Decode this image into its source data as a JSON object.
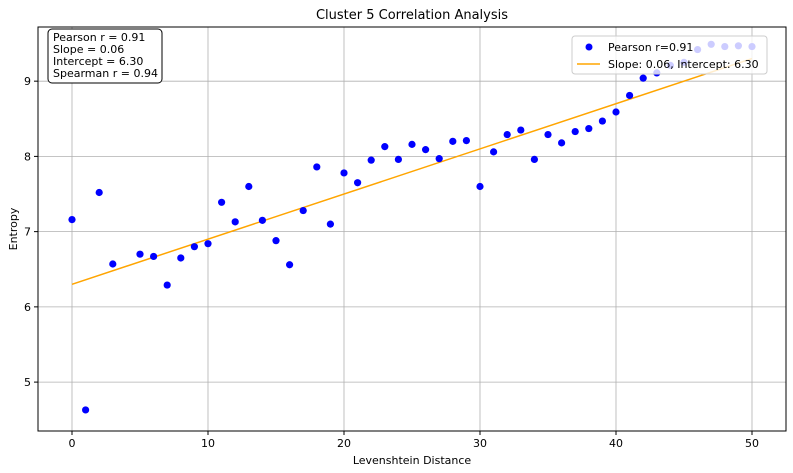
{
  "chart_data": {
    "type": "scatter",
    "title": "Cluster 5 Correlation Analysis",
    "xlabel": "Levenshtein Distance",
    "ylabel": "Entropy",
    "xlim": [
      -2.5,
      52.5
    ],
    "ylim": [
      4.35,
      9.72
    ],
    "xticks": [
      0,
      10,
      20,
      30,
      40,
      50
    ],
    "yticks": [
      5,
      6,
      7,
      8,
      9
    ],
    "grid": true,
    "legend_position": "top-right",
    "series": [
      {
        "name": "Pearson r=0.91",
        "kind": "scatter",
        "color": "#0000ff",
        "points": [
          [
            0,
            7.16
          ],
          [
            1,
            4.63
          ],
          [
            2,
            7.52
          ],
          [
            3,
            6.57
          ],
          [
            5,
            6.7
          ],
          [
            6,
            6.67
          ],
          [
            7,
            6.29
          ],
          [
            8,
            6.65
          ],
          [
            9,
            6.8
          ],
          [
            10,
            6.84
          ],
          [
            11,
            7.39
          ],
          [
            12,
            7.13
          ],
          [
            13,
            7.6
          ],
          [
            14,
            7.15
          ],
          [
            15,
            6.88
          ],
          [
            16,
            6.56
          ],
          [
            17,
            7.28
          ],
          [
            18,
            7.86
          ],
          [
            19,
            7.1
          ],
          [
            20,
            7.78
          ],
          [
            21,
            7.65
          ],
          [
            22,
            7.95
          ],
          [
            23,
            8.13
          ],
          [
            24,
            7.96
          ],
          [
            25,
            8.16
          ],
          [
            26,
            8.09
          ],
          [
            27,
            7.97
          ],
          [
            28,
            8.2
          ],
          [
            29,
            8.21
          ],
          [
            30,
            7.6
          ],
          [
            31,
            8.06
          ],
          [
            32,
            8.29
          ],
          [
            33,
            8.35
          ],
          [
            34,
            7.96
          ],
          [
            35,
            8.29
          ],
          [
            36,
            8.18
          ],
          [
            37,
            8.33
          ],
          [
            38,
            8.37
          ],
          [
            39,
            8.47
          ],
          [
            40,
            8.59
          ],
          [
            41,
            8.81
          ],
          [
            42,
            9.04
          ],
          [
            43,
            9.11
          ],
          [
            44,
            9.21
          ],
          [
            45,
            9.25
          ],
          [
            46,
            9.42
          ],
          [
            47,
            9.49
          ],
          [
            48,
            9.46
          ],
          [
            49,
            9.47
          ],
          [
            50,
            9.46
          ]
        ]
      },
      {
        "name": "Slope: 0.06, Intercept: 6.30",
        "kind": "line",
        "color": "#ffa500",
        "slope": 0.06,
        "intercept": 6.3,
        "x_range": [
          0,
          50
        ]
      }
    ],
    "annotations": {
      "stats_box": [
        "Pearson r = 0.91",
        "Slope = 0.06",
        "Intercept = 6.30",
        "Spearman r = 0.94"
      ]
    }
  }
}
